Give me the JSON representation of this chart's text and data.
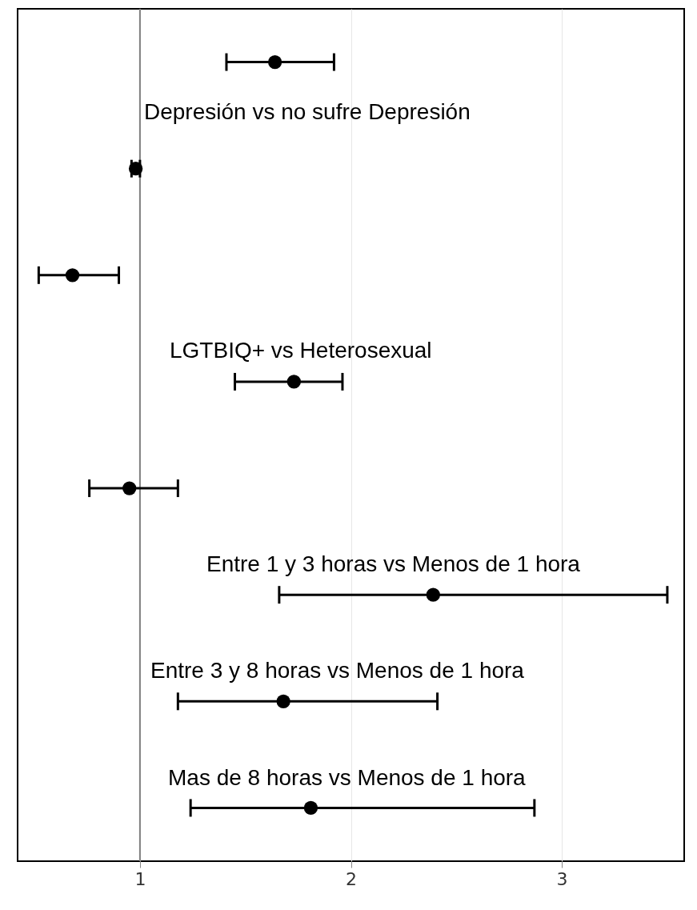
{
  "chart_data": {
    "type": "scatter",
    "orientation": "horizontal",
    "categories": [
      null,
      null,
      null,
      null,
      null,
      null,
      null,
      null
    ],
    "values": [
      1.64,
      0.98,
      0.68,
      1.73,
      0.95,
      2.39,
      1.68,
      1.81
    ],
    "errors": [
      [
        1.41,
        1.92
      ],
      [
        0.96,
        1.0
      ],
      [
        0.52,
        0.9
      ],
      [
        1.45,
        1.96
      ],
      [
        0.76,
        1.18
      ],
      [
        1.66,
        3.5
      ],
      [
        1.18,
        2.41
      ],
      [
        1.24,
        2.87
      ]
    ],
    "color": "#000000",
    "marker": "circle",
    "xlim": [
      0.42,
      3.58
    ],
    "xticks": [
      {
        "value": 1,
        "label": "1"
      },
      {
        "value": 2,
        "label": "2"
      },
      {
        "value": 3,
        "label": "3"
      }
    ],
    "grid": true,
    "ref_lines": [
      {
        "axis": "x",
        "value": 1,
        "color": "#7f7f7f"
      }
    ],
    "annotations": [
      "Depresión vs no sufre Depresión",
      "LGTBIQ+ vs Heterosexual",
      "Entre 1 y 3 horas vs Menos de 1 hora",
      "Entre 3 y 8 horas vs Menos de 1 hora",
      "Mas de 8 horas vs Menos de 1 hora"
    ]
  }
}
